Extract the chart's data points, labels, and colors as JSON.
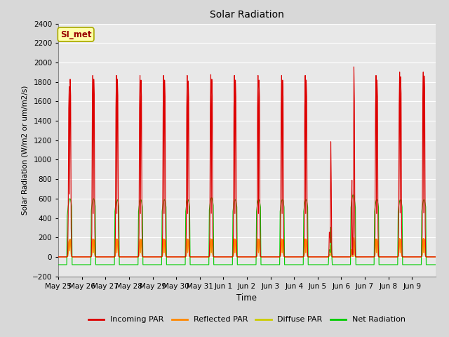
{
  "title": "Solar Radiation",
  "ylabel": "Solar Radiation (W/m2 or um/m2/s)",
  "xlabel": "Time",
  "ylim": [
    -200,
    2400
  ],
  "yticks": [
    -200,
    0,
    200,
    400,
    600,
    800,
    1000,
    1200,
    1400,
    1600,
    1800,
    2000,
    2200,
    2400
  ],
  "plot_bg_color": "#e8e8e8",
  "fig_bg_color": "#d8d8d8",
  "annotation_label": "SI_met",
  "annotation_color": "#990000",
  "annotation_bg": "#ffffaa",
  "annotation_edge": "#aaaa00",
  "num_days": 16,
  "day_labels": [
    "May 25",
    "May 26",
    "May 27",
    "May 28",
    "May 29",
    "May 30",
    "May 31",
    "Jun 1",
    "Jun 2",
    "Jun 3",
    "Jun 4",
    "Jun 5",
    "Jun 6",
    "Jun 7",
    "Jun 8",
    "Jun 9"
  ],
  "incoming_color": "#dd0000",
  "reflected_color": "#ff8800",
  "diffuse_color": "#cccc00",
  "net_color": "#00cc00",
  "line_width": 0.8,
  "title_fontsize": 10,
  "label_fontsize": 7.5,
  "tick_fontsize": 7.5,
  "legend_fontsize": 8
}
